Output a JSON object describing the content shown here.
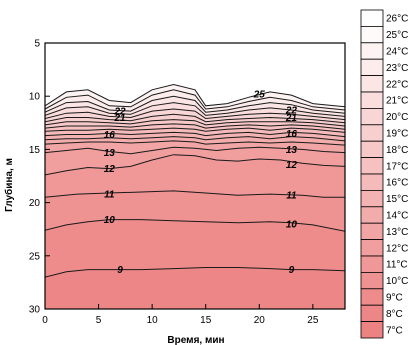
{
  "chart_data": {
    "type": "heatmap",
    "subtype": "contour",
    "xlabel": "Время, мин",
    "ylabel": "Глубина, м",
    "xlim": [
      0,
      28
    ],
    "ylim": [
      30,
      5
    ],
    "x_ticks": [
      0,
      5,
      10,
      15,
      20,
      25
    ],
    "y_ticks": [
      5,
      10,
      15,
      20,
      25,
      30
    ],
    "x_tick_labels": [
      "0",
      "5",
      "10",
      "15",
      "20",
      "25"
    ],
    "y_tick_labels": [
      "5",
      "10",
      "15",
      "20",
      "25",
      "30"
    ],
    "legend_position": "right",
    "legend": [
      {
        "label": "26°C",
        "value": 26,
        "color": "#ffffff"
      },
      {
        "label": "25°C",
        "value": 25,
        "color": "#fefafa"
      },
      {
        "label": "24°C",
        "value": 24,
        "color": "#fdf3f3"
      },
      {
        "label": "23°C",
        "value": 23,
        "color": "#fcecec"
      },
      {
        "label": "22°C",
        "value": 22,
        "color": "#fbe5e5"
      },
      {
        "label": "21°C",
        "value": 21,
        "color": "#fadddd"
      },
      {
        "label": "20°C",
        "value": 20,
        "color": "#f9d6d6"
      },
      {
        "label": "19°C",
        "value": 19,
        "color": "#f8cfcf"
      },
      {
        "label": "18°C",
        "value": 18,
        "color": "#f7c8c8"
      },
      {
        "label": "17°C",
        "value": 17,
        "color": "#f6c1c1"
      },
      {
        "label": "16°C",
        "value": 16,
        "color": "#f5baba"
      },
      {
        "label": "15°C",
        "value": 15,
        "color": "#f4b3b3"
      },
      {
        "label": "14°C",
        "value": 14,
        "color": "#f3acac"
      },
      {
        "label": "13°C",
        "value": 13,
        "color": "#f2a5a5"
      },
      {
        "label": "12°C",
        "value": 12,
        "color": "#f19e9e"
      },
      {
        "label": "11°C",
        "value": 11,
        "color": "#f09898"
      },
      {
        "label": "10°C",
        "value": 10,
        "color": "#ef9292"
      },
      {
        "label": "9°C",
        "value": 9,
        "color": "#ee8c8c"
      },
      {
        "label": "8°C",
        "value": 8,
        "color": "#ed8787"
      },
      {
        "label": "7°C",
        "value": 7,
        "color": "#ec8282"
      }
    ],
    "isotherms": [
      {
        "value": 25,
        "label": "25",
        "label_points": [
          [
            20,
            9.8
          ]
        ],
        "points": [
          [
            0,
            10.9
          ],
          [
            2,
            9.6
          ],
          [
            4,
            9.4
          ],
          [
            6,
            10.4
          ],
          [
            8,
            10.6
          ],
          [
            10,
            9.4
          ],
          [
            12,
            8.9
          ],
          [
            14,
            9.4
          ],
          [
            15,
            10.9
          ],
          [
            17,
            10.7
          ],
          [
            19,
            10.1
          ],
          [
            21,
            9.6
          ],
          [
            23,
            9.9
          ],
          [
            25,
            10.7
          ],
          [
            28,
            11.0
          ]
        ]
      },
      {
        "value": 24,
        "label": "",
        "label_points": [],
        "points": [
          [
            0,
            11.2
          ],
          [
            2,
            10.1
          ],
          [
            4,
            9.9
          ],
          [
            6,
            10.9
          ],
          [
            8,
            11.0
          ],
          [
            10,
            9.9
          ],
          [
            12,
            9.4
          ],
          [
            14,
            9.9
          ],
          [
            15,
            11.2
          ],
          [
            17,
            11.0
          ],
          [
            19,
            10.5
          ],
          [
            21,
            10.1
          ],
          [
            23,
            10.4
          ],
          [
            25,
            11.0
          ],
          [
            28,
            11.3
          ]
        ]
      },
      {
        "value": 23,
        "label": "",
        "label_points": [],
        "points": [
          [
            0,
            11.5
          ],
          [
            2,
            10.6
          ],
          [
            4,
            10.5
          ],
          [
            6,
            11.3
          ],
          [
            8,
            11.4
          ],
          [
            10,
            10.4
          ],
          [
            12,
            10.0
          ],
          [
            14,
            10.4
          ],
          [
            15,
            11.5
          ],
          [
            17,
            11.3
          ],
          [
            19,
            10.9
          ],
          [
            21,
            10.6
          ],
          [
            23,
            10.8
          ],
          [
            25,
            11.3
          ],
          [
            28,
            11.6
          ]
        ]
      },
      {
        "value": 22,
        "label": "22",
        "label_points": [
          [
            7,
            11.4
          ],
          [
            23,
            11.3
          ]
        ],
        "points": [
          [
            0,
            11.8
          ],
          [
            2,
            11.1
          ],
          [
            4,
            11.0
          ],
          [
            6,
            11.6
          ],
          [
            8,
            11.7
          ],
          [
            10,
            10.9
          ],
          [
            12,
            10.6
          ],
          [
            14,
            10.9
          ],
          [
            15,
            11.8
          ],
          [
            17,
            11.6
          ],
          [
            19,
            11.3
          ],
          [
            21,
            11.1
          ],
          [
            23,
            11.3
          ],
          [
            25,
            11.6
          ],
          [
            28,
            11.9
          ]
        ]
      },
      {
        "value": 21,
        "label": "21",
        "label_points": [
          [
            7,
            12.0
          ],
          [
            23,
            12.0
          ]
        ],
        "points": [
          [
            0,
            12.1
          ],
          [
            2,
            11.6
          ],
          [
            4,
            11.5
          ],
          [
            6,
            11.9
          ],
          [
            8,
            12.0
          ],
          [
            10,
            11.4
          ],
          [
            12,
            11.2
          ],
          [
            14,
            11.4
          ],
          [
            15,
            12.1
          ],
          [
            17,
            11.9
          ],
          [
            19,
            11.7
          ],
          [
            21,
            11.6
          ],
          [
            23,
            11.7
          ],
          [
            25,
            11.9
          ],
          [
            28,
            12.2
          ]
        ]
      },
      {
        "value": 20,
        "label": "",
        "label_points": [],
        "points": [
          [
            0,
            12.4
          ],
          [
            2,
            12.0
          ],
          [
            4,
            12.0
          ],
          [
            6,
            12.2
          ],
          [
            8,
            12.3
          ],
          [
            10,
            11.9
          ],
          [
            12,
            11.7
          ],
          [
            14,
            11.9
          ],
          [
            15,
            12.4
          ],
          [
            17,
            12.2
          ],
          [
            19,
            12.1
          ],
          [
            21,
            12.0
          ],
          [
            23,
            12.1
          ],
          [
            25,
            12.2
          ],
          [
            28,
            12.5
          ]
        ]
      },
      {
        "value": 19,
        "label": "",
        "label_points": [],
        "points": [
          [
            0,
            12.7
          ],
          [
            2,
            12.4
          ],
          [
            4,
            12.4
          ],
          [
            6,
            12.5
          ],
          [
            8,
            12.6
          ],
          [
            10,
            12.3
          ],
          [
            12,
            12.2
          ],
          [
            14,
            12.3
          ],
          [
            15,
            12.7
          ],
          [
            17,
            12.5
          ],
          [
            19,
            12.4
          ],
          [
            21,
            12.4
          ],
          [
            23,
            12.4
          ],
          [
            25,
            12.5
          ],
          [
            28,
            12.8
          ]
        ]
      },
      {
        "value": 18,
        "label": "",
        "label_points": [],
        "points": [
          [
            0,
            13.0
          ],
          [
            2,
            12.8
          ],
          [
            4,
            12.8
          ],
          [
            6,
            12.8
          ],
          [
            8,
            12.9
          ],
          [
            10,
            12.7
          ],
          [
            12,
            12.6
          ],
          [
            14,
            12.7
          ],
          [
            15,
            13.0
          ],
          [
            17,
            12.8
          ],
          [
            19,
            12.7
          ],
          [
            21,
            12.8
          ],
          [
            23,
            12.7
          ],
          [
            25,
            12.8
          ],
          [
            28,
            13.1
          ]
        ]
      },
      {
        "value": 17,
        "label": "",
        "label_points": [],
        "points": [
          [
            0,
            13.3
          ],
          [
            2,
            13.2
          ],
          [
            4,
            13.2
          ],
          [
            6,
            13.1
          ],
          [
            8,
            13.2
          ],
          [
            10,
            13.1
          ],
          [
            12,
            13.0
          ],
          [
            14,
            13.1
          ],
          [
            15,
            13.3
          ],
          [
            17,
            13.1
          ],
          [
            19,
            13.0
          ],
          [
            21,
            13.2
          ],
          [
            23,
            13.0
          ],
          [
            25,
            13.1
          ],
          [
            28,
            13.4
          ]
        ]
      },
      {
        "value": 16,
        "label": "16",
        "label_points": [
          [
            6,
            13.6
          ],
          [
            23,
            13.5
          ]
        ],
        "points": [
          [
            0,
            13.7
          ],
          [
            2,
            13.6
          ],
          [
            4,
            13.6
          ],
          [
            6,
            13.5
          ],
          [
            8,
            13.6
          ],
          [
            10,
            13.5
          ],
          [
            12,
            13.4
          ],
          [
            14,
            13.5
          ],
          [
            15,
            13.7
          ],
          [
            17,
            13.5
          ],
          [
            19,
            13.4
          ],
          [
            21,
            13.6
          ],
          [
            23,
            13.4
          ],
          [
            25,
            13.5
          ],
          [
            28,
            13.8
          ]
        ]
      },
      {
        "value": 15,
        "label": "",
        "label_points": [],
        "points": [
          [
            0,
            14.1
          ],
          [
            2,
            14.0
          ],
          [
            4,
            14.0
          ],
          [
            6,
            13.9
          ],
          [
            8,
            14.0
          ],
          [
            10,
            13.9
          ],
          [
            12,
            13.8
          ],
          [
            14,
            13.9
          ],
          [
            15,
            14.1
          ],
          [
            17,
            13.9
          ],
          [
            19,
            13.8
          ],
          [
            21,
            14.0
          ],
          [
            23,
            13.8
          ],
          [
            25,
            13.9
          ],
          [
            28,
            14.2
          ]
        ]
      },
      {
        "value": 14,
        "label": "",
        "label_points": [],
        "points": [
          [
            0,
            14.5
          ],
          [
            2,
            14.4
          ],
          [
            4,
            14.3
          ],
          [
            6,
            14.3
          ],
          [
            8,
            14.4
          ],
          [
            10,
            14.3
          ],
          [
            12,
            14.2
          ],
          [
            14,
            14.3
          ],
          [
            15,
            14.5
          ],
          [
            17,
            14.4
          ],
          [
            19,
            14.3
          ],
          [
            21,
            14.4
          ],
          [
            23,
            14.3
          ],
          [
            25,
            14.4
          ],
          [
            28,
            14.6
          ]
        ]
      },
      {
        "value": 13,
        "label": "13",
        "label_points": [
          [
            6,
            15.3
          ],
          [
            23,
            15.0
          ]
        ],
        "points": [
          [
            0,
            15.3
          ],
          [
            2,
            15.1
          ],
          [
            4,
            14.9
          ],
          [
            6,
            15.2
          ],
          [
            8,
            15.4
          ],
          [
            10,
            15.1
          ],
          [
            12,
            14.8
          ],
          [
            14,
            14.9
          ],
          [
            16,
            15.1
          ],
          [
            18,
            14.9
          ],
          [
            20,
            14.8
          ],
          [
            22,
            14.9
          ],
          [
            24,
            15.0
          ],
          [
            26,
            15.2
          ],
          [
            28,
            15.3
          ]
        ]
      },
      {
        "value": 12,
        "label": "12",
        "label_points": [
          [
            6,
            16.8
          ],
          [
            23,
            16.4
          ]
        ],
        "points": [
          [
            0,
            17.4
          ],
          [
            2,
            17.0
          ],
          [
            4,
            16.7
          ],
          [
            6,
            16.8
          ],
          [
            8,
            16.6
          ],
          [
            10,
            16.0
          ],
          [
            12,
            15.5
          ],
          [
            14,
            15.6
          ],
          [
            16,
            16.0
          ],
          [
            18,
            16.1
          ],
          [
            20,
            15.9
          ],
          [
            22,
            16.0
          ],
          [
            24,
            16.3
          ],
          [
            26,
            16.5
          ],
          [
            28,
            16.6
          ]
        ]
      },
      {
        "value": 11,
        "label": "11",
        "label_points": [
          [
            6,
            19.2
          ],
          [
            23,
            19.3
          ]
        ],
        "points": [
          [
            0,
            19.5
          ],
          [
            3,
            19.2
          ],
          [
            6,
            19.1
          ],
          [
            9,
            19.0
          ],
          [
            12,
            18.9
          ],
          [
            15,
            19.1
          ],
          [
            18,
            19.3
          ],
          [
            21,
            19.2
          ],
          [
            24,
            19.3
          ],
          [
            26,
            19.5
          ],
          [
            28,
            19.5
          ]
        ]
      },
      {
        "value": 10,
        "label": "10",
        "label_points": [
          [
            6,
            21.6
          ],
          [
            23,
            22.0
          ]
        ],
        "points": [
          [
            0,
            22.6
          ],
          [
            2,
            22.1
          ],
          [
            4,
            21.8
          ],
          [
            6,
            21.6
          ],
          [
            9,
            21.6
          ],
          [
            12,
            21.7
          ],
          [
            15,
            21.8
          ],
          [
            18,
            21.9
          ],
          [
            21,
            21.8
          ],
          [
            23,
            21.9
          ],
          [
            25,
            22.1
          ],
          [
            28,
            22.7
          ]
        ]
      },
      {
        "value": 9,
        "label": "9",
        "label_points": [
          [
            7,
            26.3
          ],
          [
            23,
            26.3
          ]
        ],
        "points": [
          [
            0,
            27.0
          ],
          [
            2,
            26.5
          ],
          [
            4,
            26.3
          ],
          [
            6,
            26.3
          ],
          [
            9,
            26.3
          ],
          [
            12,
            26.2
          ],
          [
            15,
            26.1
          ],
          [
            18,
            26.1
          ],
          [
            21,
            26.2
          ],
          [
            23,
            26.3
          ],
          [
            25,
            26.3
          ],
          [
            28,
            26.4
          ]
        ]
      }
    ],
    "top_surface_color": "#ffffff",
    "plot_frame_color": "#000000"
  }
}
